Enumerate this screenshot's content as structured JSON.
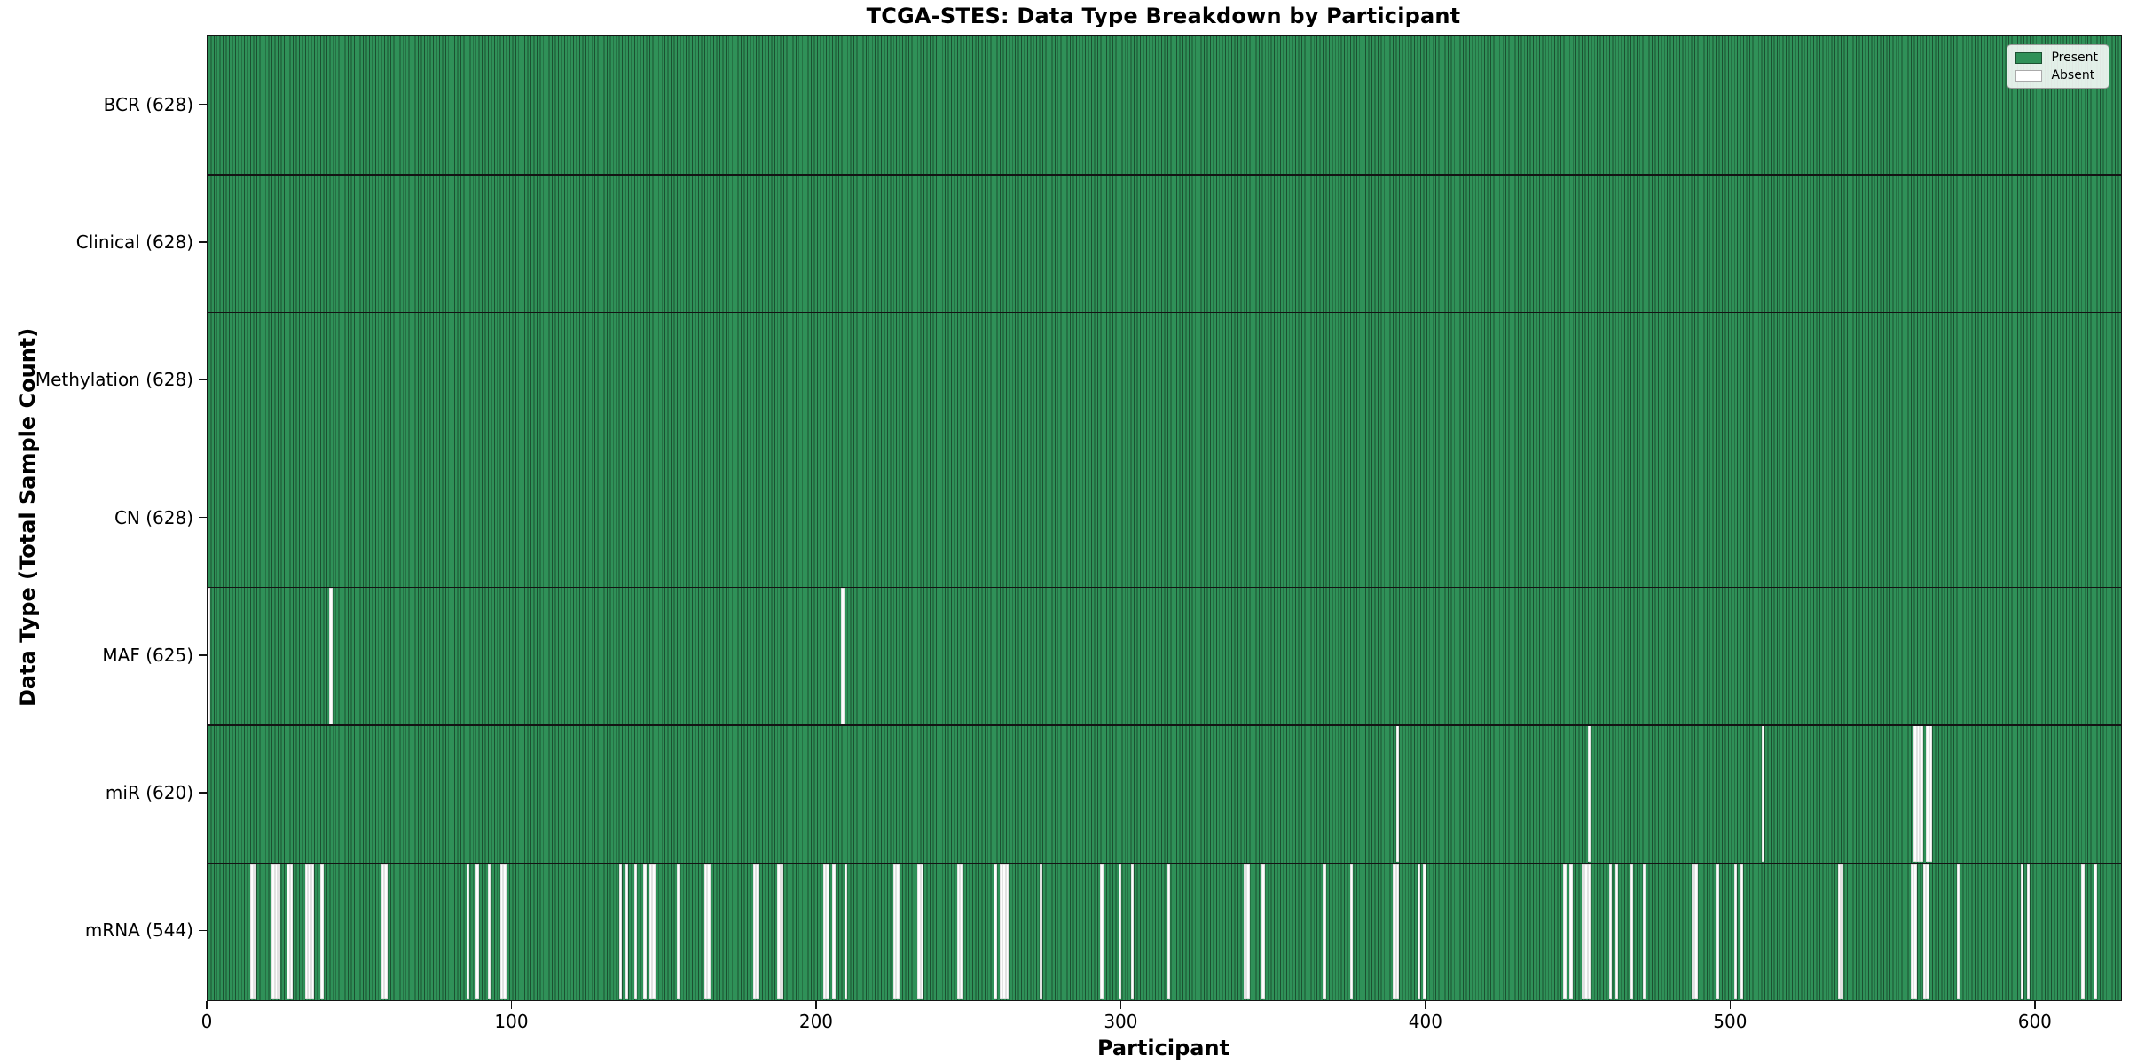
{
  "chart_data": {
    "type": "heatmap",
    "title": "TCGA-STES: Data Type Breakdown by Participant",
    "xlabel": "Participant",
    "ylabel": "Data Type (Total Sample Count)",
    "n_participants": 628,
    "xlim": [
      0,
      628
    ],
    "x_ticks": [
      0,
      100,
      200,
      300,
      400,
      500,
      600
    ],
    "grid": false,
    "legend_position": "upper right",
    "legend": [
      {
        "label": "Present",
        "color": "#2f9158"
      },
      {
        "label": "Absent",
        "color": "#ffffff"
      }
    ],
    "colors": {
      "present_fill": "#2f9158",
      "present_edge": "#1b5131",
      "absent_fill": "#fdfdfd",
      "frame": "#141414"
    },
    "rows": [
      {
        "name": "BCR",
        "count": 628,
        "tick_label": "BCR (628)",
        "absent": []
      },
      {
        "name": "Clinical",
        "count": 628,
        "tick_label": "Clinical (628)",
        "absent": []
      },
      {
        "name": "Methylation",
        "count": 628,
        "tick_label": "Methylation (628)",
        "absent": []
      },
      {
        "name": "CN",
        "count": 628,
        "tick_label": "CN (628)",
        "absent": []
      },
      {
        "name": "MAF",
        "count": 625,
        "tick_label": "MAF (625)",
        "absent": [
          0,
          40,
          208
        ]
      },
      {
        "name": "miR",
        "count": 620,
        "tick_label": "miR (620)",
        "absent": [
          390,
          453,
          510,
          560,
          561,
          562,
          564,
          565
        ]
      },
      {
        "name": "mRNA",
        "count": 544,
        "tick_label": "mRNA (544)",
        "absent": [
          14,
          15,
          21,
          22,
          23,
          26,
          27,
          32,
          33,
          34,
          37,
          57,
          58,
          85,
          88,
          92,
          96,
          97,
          135,
          137,
          140,
          143,
          145,
          146,
          154,
          163,
          164,
          179,
          180,
          187,
          188,
          202,
          203,
          205,
          209,
          225,
          226,
          233,
          234,
          246,
          247,
          258,
          260,
          261,
          262,
          273,
          293,
          299,
          303,
          315,
          340,
          341,
          346,
          366,
          375,
          389,
          390,
          397,
          399,
          445,
          447,
          451,
          452,
          453,
          460,
          462,
          467,
          471,
          487,
          488,
          495,
          501,
          503,
          535,
          536,
          559,
          560,
          563,
          564,
          574,
          595,
          597,
          615,
          619
        ]
      }
    ]
  }
}
